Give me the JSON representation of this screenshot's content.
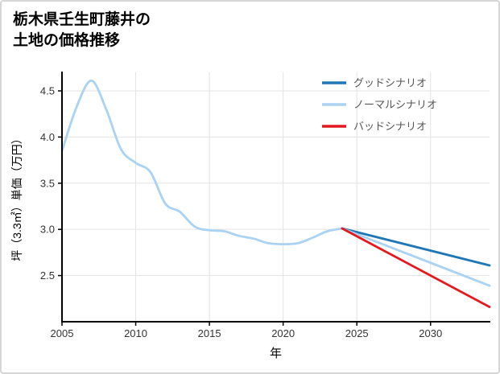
{
  "title": {
    "line1": "栃木県壬生町藤井の",
    "line2": "土地の価格推移"
  },
  "chart_data": {
    "type": "line",
    "title": "栃木県壬生町藤井の土地の価格推移",
    "xlabel": "年",
    "ylabel": "坪（3.3㎡）単価（万円）",
    "xlim": [
      2005,
      2034
    ],
    "ylim": [
      2.0,
      4.7
    ],
    "xticks": [
      2005,
      2010,
      2015,
      2020,
      2025,
      2030
    ],
    "yticks": [
      2.5,
      3.0,
      3.5,
      4.0,
      4.5
    ],
    "grid": true,
    "legend_position": "top-right",
    "colors": {
      "grid": "#e3e3e3",
      "axis": "#000000",
      "tick_label": "#333333",
      "axis_label": "#000000",
      "legend_text": "#555555",
      "history_blue": "#a9d2f3",
      "good_blue": "#1f77b4",
      "bad_red": "#e4181e"
    },
    "series": [
      {
        "key": "history",
        "color": "#a9d2f3",
        "smooth": true,
        "x": [
          2005,
          2006,
          2007,
          2008,
          2009,
          2010,
          2011,
          2012,
          2013,
          2014,
          2015,
          2016,
          2017,
          2018,
          2019,
          2020,
          2021,
          2022,
          2023,
          2024
        ],
        "y": [
          3.85,
          4.33,
          4.61,
          4.3,
          3.87,
          3.72,
          3.62,
          3.28,
          3.19,
          3.03,
          2.99,
          2.98,
          2.93,
          2.9,
          2.85,
          2.84,
          2.85,
          2.91,
          2.98,
          3.01
        ]
      },
      {
        "key": "good",
        "name": "グッドシナリオ",
        "color": "#1f77b4",
        "smooth": false,
        "x": [
          2024,
          2034
        ],
        "y": [
          3.01,
          2.61
        ]
      },
      {
        "key": "normal",
        "name": "ノーマルシナリオ",
        "color": "#a9d2f3",
        "smooth": false,
        "x": [
          2024,
          2034
        ],
        "y": [
          3.01,
          2.39
        ]
      },
      {
        "key": "bad",
        "name": "バッドシナリオ",
        "color": "#e4181e",
        "smooth": false,
        "x": [
          2024,
          2034
        ],
        "y": [
          3.01,
          2.16
        ]
      }
    ],
    "legend": [
      {
        "key": "good",
        "label": "グッドシナリオ",
        "color": "#1f77b4"
      },
      {
        "key": "normal",
        "label": "ノーマルシナリオ",
        "color": "#a9d2f3"
      },
      {
        "key": "bad",
        "label": "バッドシナリオ",
        "color": "#e4181e"
      }
    ]
  }
}
